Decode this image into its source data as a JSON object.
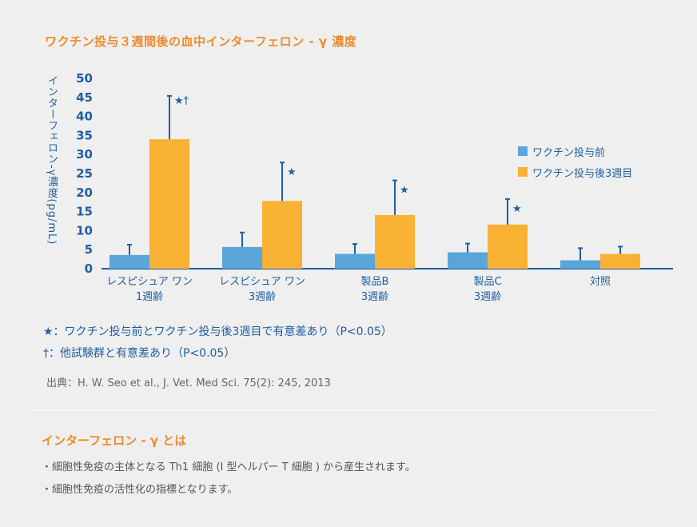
{
  "title": "ワクチン投与３週間後の血中インターフェロン - γ 濃度",
  "chart_data": {
    "type": "bar",
    "ylabel": "インターフェロン-γ濃度(pg/mL)",
    "ylim": [
      0,
      50
    ],
    "yticks": [
      0,
      5,
      10,
      15,
      20,
      25,
      30,
      35,
      40,
      45,
      50
    ],
    "categories": [
      {
        "line1": "レスピシュア ワン",
        "line2": "1週齢"
      },
      {
        "line1": "レスピシュア ワン",
        "line2": "3週齢"
      },
      {
        "line1": "製品B",
        "line2": "3週齢"
      },
      {
        "line1": "製品C",
        "line2": "3週齢"
      },
      {
        "line1": "対照",
        "line2": ""
      }
    ],
    "series": [
      {
        "name": "ワクチン投与前",
        "color": "#5aa5da",
        "values": [
          3.6,
          5.7,
          3.9,
          4.3,
          2.2
        ],
        "errors": [
          6.3,
          9.5,
          6.5,
          6.6,
          5.4
        ]
      },
      {
        "name": "ワクチン投与後3週目",
        "color": "#f8b133",
        "values": [
          34.0,
          17.8,
          14.1,
          11.6,
          3.9
        ],
        "errors": [
          45.4,
          27.9,
          23.2,
          18.3,
          5.8
        ]
      }
    ],
    "annotations": [
      "★†",
      "★",
      "★",
      "★",
      ""
    ]
  },
  "notes": [
    "★：ワクチン投与前とワクチン投与後3週目で有意差あり（P<0.05）",
    "†：他試験群と有意差あり（P<0.05）"
  ],
  "source": "出典：H. W. Seo et al., J. Vet. Med Sci. 75(2): 245, 2013",
  "section": {
    "title": "インターフェロン - γ とは",
    "bullets": [
      "・細胞性免疫の主体となる Th1 細胞 (I 型ヘルパー T 細胞 ) から産生されます。",
      "・細胞性免疫の活性化の指標となります。"
    ]
  },
  "colors": {
    "accent": "#f08a2c",
    "axis": "#1f5fa3",
    "error": "#1f5fa3"
  }
}
